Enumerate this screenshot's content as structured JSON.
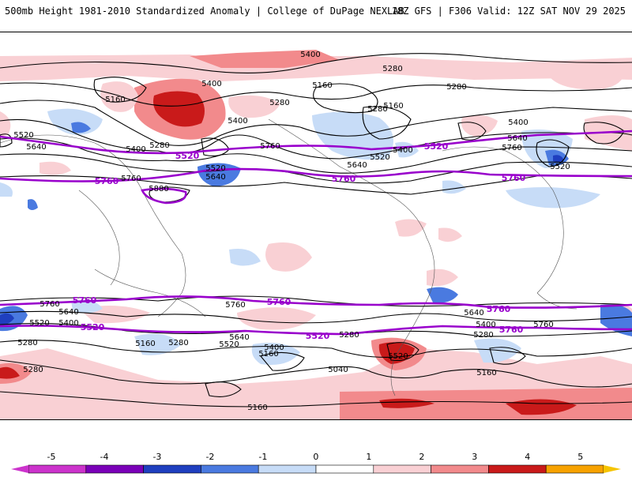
{
  "header": {
    "left": "500mb Height 1981-2010 Standardized Anomaly | College of DuPage NEXLAB",
    "right": "18Z GFS | F306 Valid: 12Z SAT NOV 29 2025"
  },
  "colors": {
    "neg5": "#cc33cc",
    "neg4": "#7a00b8",
    "neg3": "#1f3fbf",
    "neg2": "#4a7ae0",
    "neg1": "#c7dcf7",
    "zero": "#ffffff",
    "pos1": "#f9d0d4",
    "pos2": "#f28a8c",
    "pos3": "#c91a1a",
    "pos4": "#f7a200",
    "pos5": "#f5c400",
    "contour_black": "#000000",
    "contour_purple": "#9900cc"
  },
  "colorbar": {
    "ticks": [
      "-5",
      "-4",
      "-3",
      "-2",
      "-1",
      "0",
      "1",
      "2",
      "3",
      "4",
      "5"
    ]
  },
  "contour_labels": {
    "black": [
      {
        "text": "5400"
      },
      {
        "text": "5280"
      },
      {
        "text": "5160"
      },
      {
        "text": "5400"
      },
      {
        "text": "5280"
      },
      {
        "text": "5160"
      },
      {
        "text": "5280"
      },
      {
        "text": "5400"
      },
      {
        "text": "5520"
      },
      {
        "text": "5640"
      },
      {
        "text": "5400"
      },
      {
        "text": "5280"
      },
      {
        "text": "5520"
      },
      {
        "text": "5640"
      },
      {
        "text": "5760"
      },
      {
        "text": "5520"
      },
      {
        "text": "5640"
      },
      {
        "text": "5400"
      },
      {
        "text": "5160"
      },
      {
        "text": "5280"
      },
      {
        "text": "5400"
      },
      {
        "text": "5640"
      },
      {
        "text": "5760"
      },
      {
        "text": "5520"
      },
      {
        "text": "5760"
      },
      {
        "text": "5880"
      },
      {
        "text": "5760"
      },
      {
        "text": "5640"
      },
      {
        "text": "5520"
      },
      {
        "text": "5400"
      },
      {
        "text": "5280"
      },
      {
        "text": "5160"
      },
      {
        "text": "5280"
      },
      {
        "text": "5640"
      },
      {
        "text": "5520"
      },
      {
        "text": "5400"
      },
      {
        "text": "5160"
      },
      {
        "text": "5760"
      },
      {
        "text": "5040"
      },
      {
        "text": "5280"
      },
      {
        "text": "5520"
      },
      {
        "text": "5160"
      },
      {
        "text": "5640"
      },
      {
        "text": "5400"
      },
      {
        "text": "5280"
      },
      {
        "text": "5760"
      },
      {
        "text": "5280"
      },
      {
        "text": "5160"
      },
      {
        "text": "5280"
      }
    ],
    "purple": [
      {
        "text": "5520"
      },
      {
        "text": "5760"
      },
      {
        "text": "5520"
      },
      {
        "text": "5760"
      },
      {
        "text": "5760"
      },
      {
        "text": "5760"
      },
      {
        "text": "5760"
      },
      {
        "text": "5760"
      },
      {
        "text": "5520"
      },
      {
        "text": "5520"
      },
      {
        "text": "5760"
      },
      {
        "text": "5520"
      }
    ]
  }
}
